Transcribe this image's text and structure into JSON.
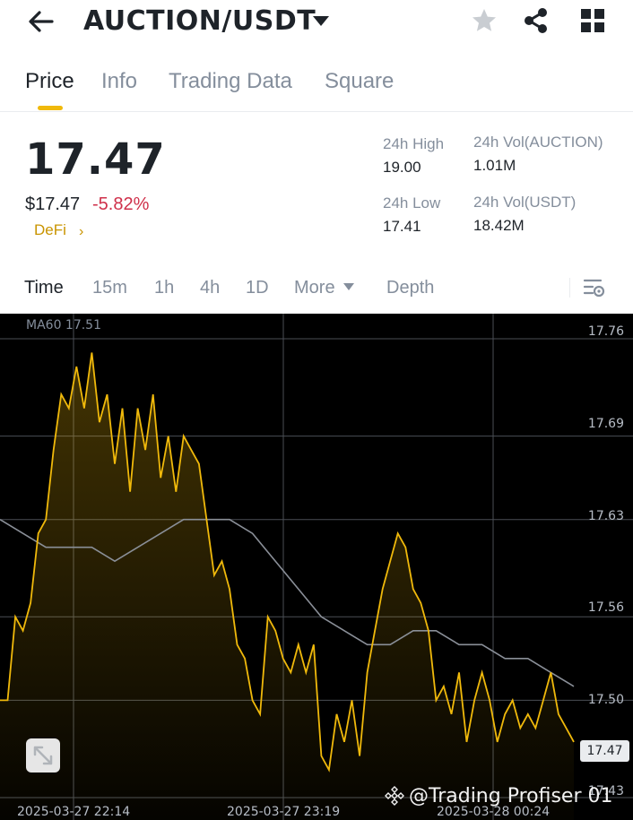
{
  "header": {
    "pair": "AUCTION/USDT",
    "icons": [
      "back-arrow-icon",
      "caret-down-icon",
      "star-icon",
      "share-icon",
      "grid-icon"
    ]
  },
  "tabs": [
    "Price",
    "Info",
    "Trading Data",
    "Square"
  ],
  "ticker": {
    "last_price": "17.47",
    "usd_price": "$17.47",
    "change_pct": "-5.82%",
    "sector": "DeFi",
    "sector_chevron": "›",
    "high_label": "24h High",
    "high_value": "19.00",
    "low_label": "24h Low",
    "low_value": "17.41",
    "vol_base_label": "24h Vol(AUCTION)",
    "vol_base_value": "1.01M",
    "vol_quote_label": "24h Vol(USDT)",
    "vol_quote_value": "18.42M"
  },
  "intervals": {
    "items": [
      "Time",
      "15m",
      "1h",
      "4h",
      "1D",
      "More",
      "Depth"
    ],
    "active": "Time"
  },
  "chart": {
    "ma_label": "MA60 17.51",
    "current_price_tag": "17.47",
    "watermark": "@Trading Profiser 01",
    "colors": {
      "line": "#f0b90b",
      "ma": "#8a8f98",
      "background": "#000000",
      "down": "#cf304a"
    }
  },
  "chart_data": {
    "type": "area",
    "y_ticks": [
      "17.76",
      "17.69",
      "17.63",
      "17.56",
      "17.50",
      "17.43"
    ],
    "x_ticks": [
      "2025-03-27 22:14",
      "2025-03-27 23:19",
      "2025-03-28 00:24"
    ],
    "ylim": [
      17.43,
      17.76
    ],
    "grid": true,
    "series": [
      {
        "name": "Price",
        "values": [
          17.5,
          17.5,
          17.56,
          17.55,
          17.57,
          17.62,
          17.63,
          17.68,
          17.72,
          17.71,
          17.74,
          17.71,
          17.75,
          17.7,
          17.72,
          17.67,
          17.71,
          17.65,
          17.71,
          17.68,
          17.72,
          17.66,
          17.69,
          17.65,
          17.69,
          17.68,
          17.67,
          17.63,
          17.59,
          17.6,
          17.58,
          17.54,
          17.53,
          17.5,
          17.49,
          17.56,
          17.55,
          17.53,
          17.52,
          17.54,
          17.52,
          17.54,
          17.46,
          17.45,
          17.49,
          17.47,
          17.5,
          17.46,
          17.52,
          17.55,
          17.58,
          17.6,
          17.62,
          17.61,
          17.58,
          17.57,
          17.55,
          17.5,
          17.51,
          17.49,
          17.52,
          17.47,
          17.5,
          17.52,
          17.5,
          17.47,
          17.49,
          17.5,
          17.48,
          17.49,
          17.48,
          17.5,
          17.52,
          17.49,
          17.48,
          17.47
        ]
      },
      {
        "name": "MA60",
        "values": [
          17.63,
          17.62,
          17.61,
          17.61,
          17.61,
          17.6,
          17.61,
          17.62,
          17.63,
          17.63,
          17.63,
          17.62,
          17.6,
          17.58,
          17.56,
          17.55,
          17.54,
          17.54,
          17.55,
          17.55,
          17.54,
          17.54,
          17.53,
          17.53,
          17.52,
          17.51
        ]
      }
    ]
  }
}
